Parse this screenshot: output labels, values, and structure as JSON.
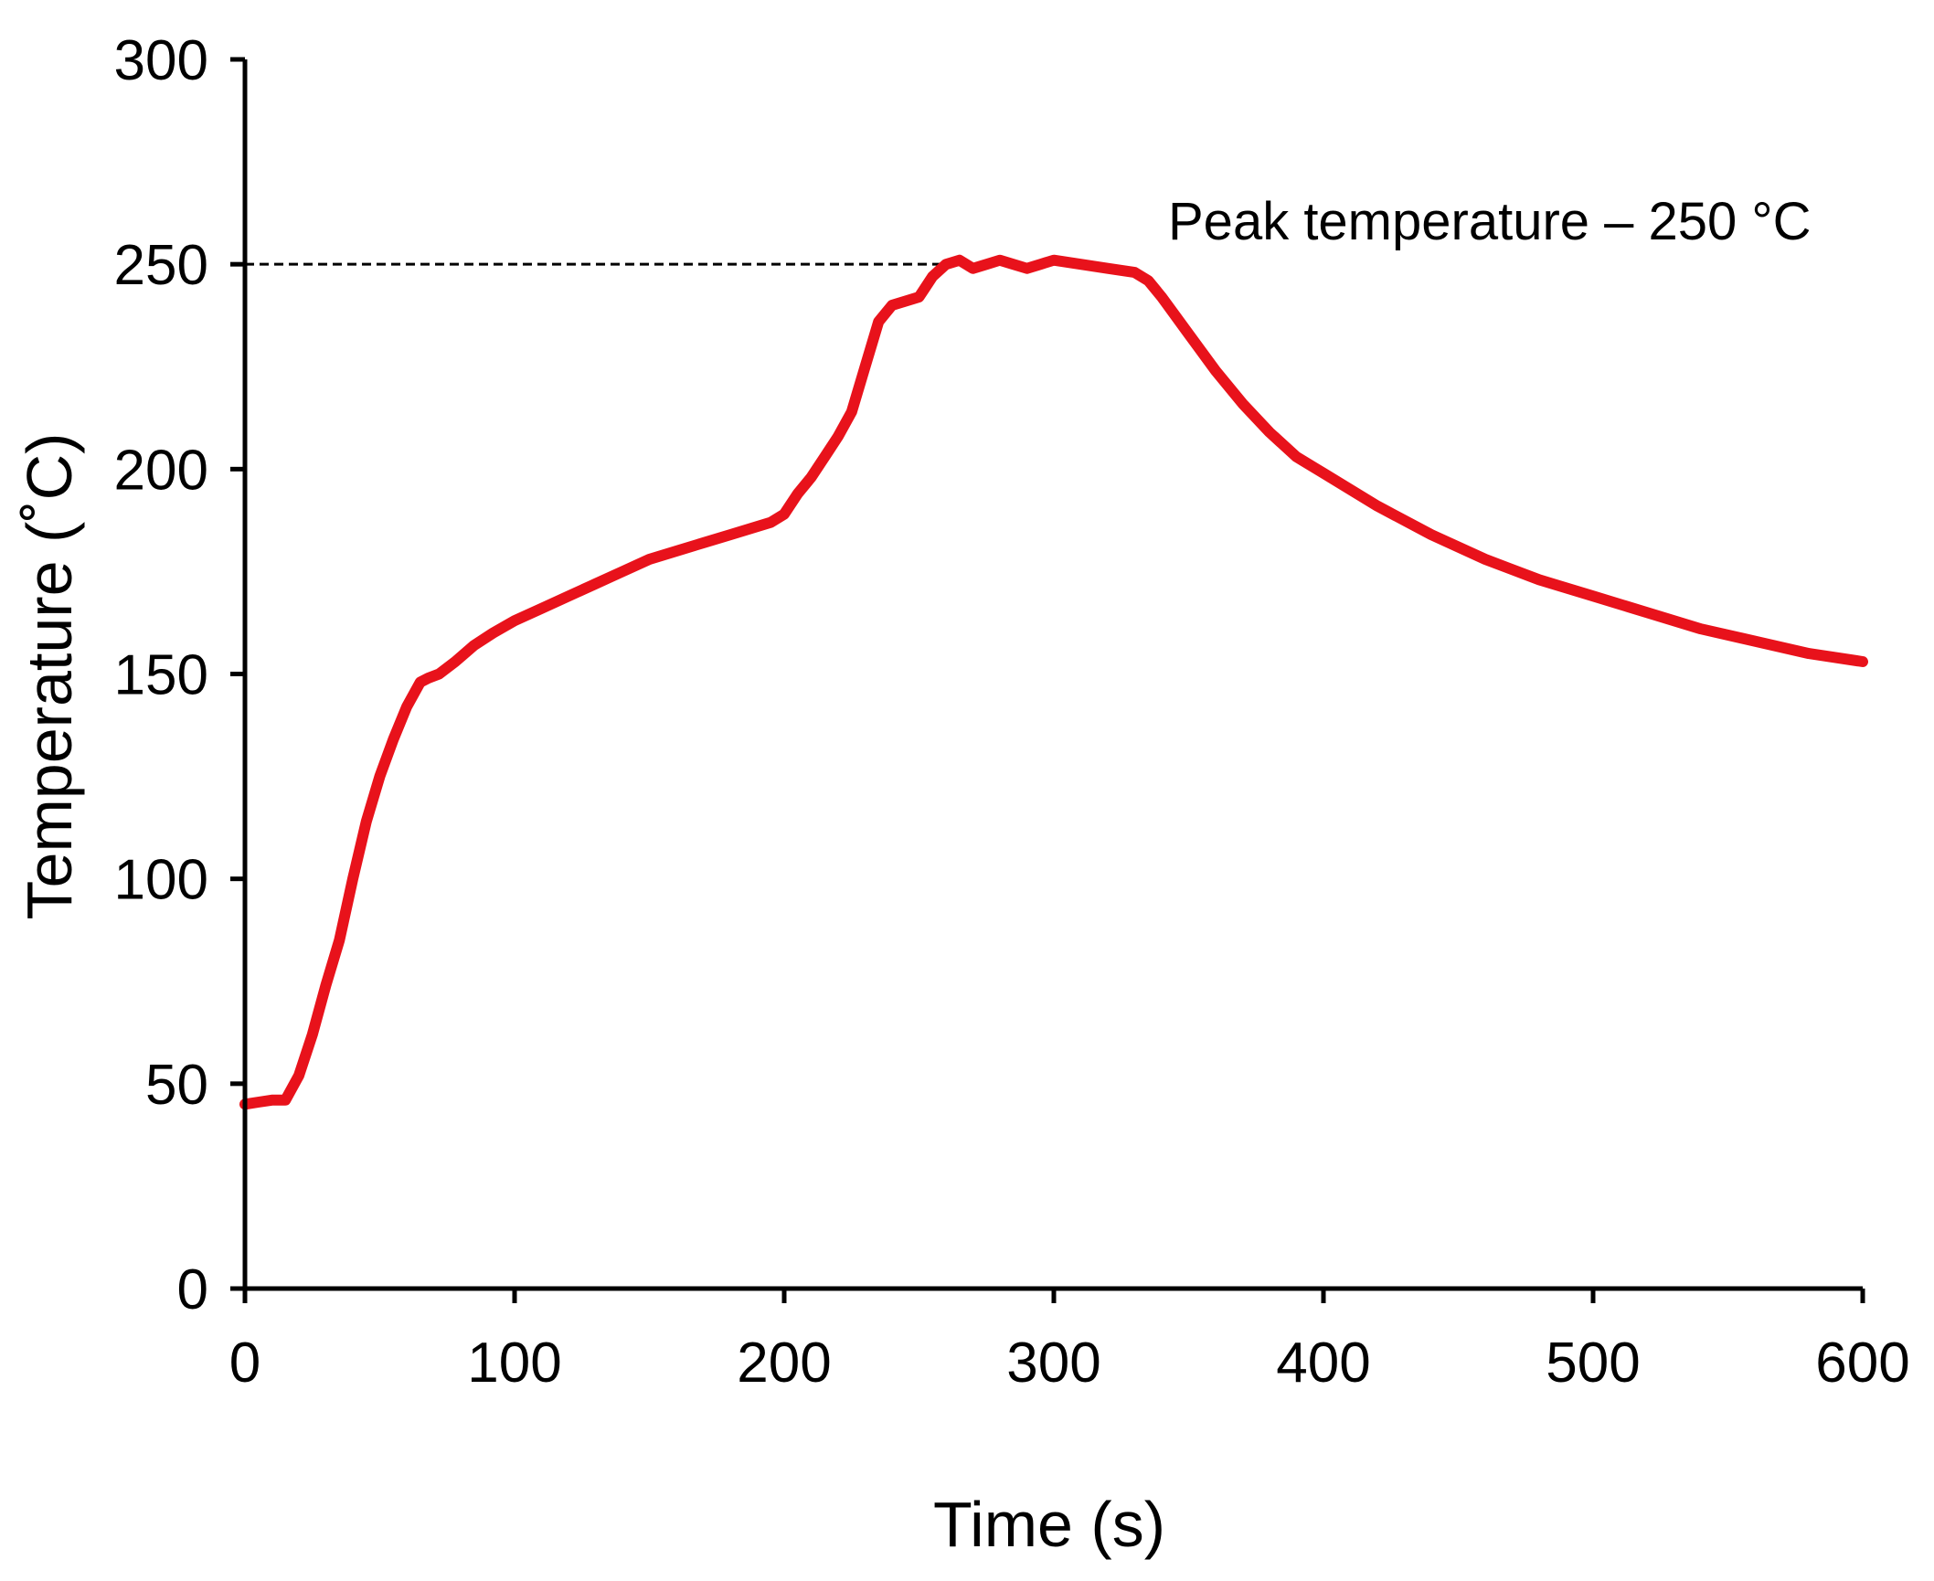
{
  "chart_data": {
    "type": "line",
    "title": "",
    "xlabel": "Time (s)",
    "ylabel": "Temperature (˚C)",
    "xlim": [
      0,
      600
    ],
    "ylim": [
      0,
      300
    ],
    "x_ticks": [
      0,
      100,
      200,
      300,
      400,
      500,
      600
    ],
    "y_ticks": [
      0,
      50,
      100,
      150,
      200,
      250,
      300
    ],
    "x_tick_labels": [
      "0",
      "100",
      "200",
      "300",
      "400",
      "500",
      "600"
    ],
    "y_tick_labels": [
      "0",
      "50",
      "100",
      "150",
      "200",
      "250",
      "300"
    ],
    "grid": false,
    "legend": "none",
    "series": [
      {
        "name": "Temperature",
        "color": "#e8121b",
        "x": [
          0,
          5,
          10,
          15,
          20,
          25,
          30,
          35,
          40,
          45,
          50,
          55,
          60,
          65,
          68,
          72,
          78,
          85,
          92,
          100,
          110,
          120,
          130,
          140,
          150,
          160,
          170,
          180,
          190,
          195,
          200,
          205,
          210,
          215,
          220,
          225,
          230,
          235,
          240,
          245,
          250,
          255,
          260,
          265,
          270,
          275,
          280,
          285,
          290,
          295,
          300,
          310,
          320,
          330,
          335,
          340,
          350,
          360,
          370,
          380,
          390,
          400,
          420,
          440,
          460,
          480,
          500,
          520,
          540,
          560,
          580,
          600
        ],
        "values": [
          45,
          45.5,
          46,
          46,
          52,
          62,
          74,
          85,
          100,
          114,
          125,
          134,
          142,
          148,
          149,
          150,
          153,
          157,
          160,
          163,
          166,
          169,
          172,
          175,
          178,
          180,
          182,
          184,
          186,
          187,
          189,
          194,
          198,
          203,
          208,
          214,
          225,
          236,
          240,
          241,
          242,
          247,
          250,
          251,
          249,
          250,
          251,
          250,
          249,
          250,
          251,
          250,
          249,
          248,
          246,
          242,
          233,
          224,
          216,
          209,
          203,
          199,
          191,
          184,
          178,
          173,
          169,
          165,
          161,
          158,
          155,
          153
        ]
      }
    ],
    "reference_lines": [
      {
        "orientation": "horizontal",
        "y": 250,
        "x_start": 0,
        "x_end": 320,
        "style": "dashed",
        "color": "#000000"
      }
    ],
    "annotations": [
      {
        "text": "Peak temperature – 250 °C",
        "x": 345,
        "y": 259
      }
    ]
  }
}
